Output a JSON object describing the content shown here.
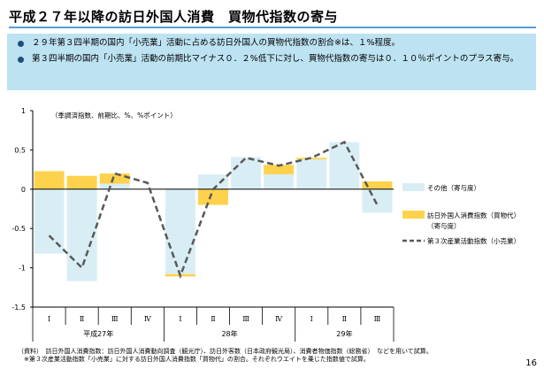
{
  "title": "平成２７年以降の訪日外国人消費　買物代指数の寄与",
  "bullets": [
    "２９年第３四半期の国内「小売業」活動に占める訪日外国人の買物代指数の割合※は、１%程度。",
    "第３四半期の国内「小売業」活動の前期比マイナス０．２%低下に対し、買物代指数の寄与は０．１０％ポイントのプラス寄与。"
  ],
  "footnotes": [
    "（資料）　訪日外国人消費指数：訪日外国人消費動向調査（観光庁）、訪日外客数（日本政府観光局）、消費者物価指数（総務省）　などを用いて試算。",
    "　※第３次産業活動指数「小売業」に対する訪日外国人消費指数「買物代」の割合。それぞれウエイトを乗じた指数値で試算。"
  ],
  "page_number": "16",
  "colors": {
    "other": "#d9eef4",
    "inbound": "#ffd24d",
    "line": "#595959",
    "accent": "#5b9bd5"
  },
  "chart_data": {
    "type": "bar",
    "unit_note": "（季調済指数、前期比、%、%ポイント）",
    "quarters": [
      "Ⅰ",
      "Ⅱ",
      "Ⅲ",
      "Ⅳ",
      "Ⅰ",
      "Ⅱ",
      "Ⅲ",
      "Ⅳ",
      "Ⅰ",
      "Ⅱ",
      "Ⅲ"
    ],
    "years": [
      {
        "label": "平成27年",
        "start": 0,
        "count": 4
      },
      {
        "label": "28年",
        "start": 4,
        "count": 4
      },
      {
        "label": "29年",
        "start": 8,
        "count": 3
      }
    ],
    "yticks": [
      "1",
      "0.5",
      "0",
      "-0.5",
      "-1",
      "-1.5"
    ],
    "ylim": [
      -1.5,
      1
    ],
    "series": [
      {
        "name": "その他（寄与度）",
        "kind": "stacked-bar",
        "values": [
          -0.82,
          -1.17,
          0.07,
          0.0,
          -1.08,
          0.19,
          0.41,
          0.19,
          0.38,
          0.6,
          -0.3
        ]
      },
      {
        "name": "訪日外国人消費指数（買物代）\n（寄与度）",
        "kind": "stacked-bar",
        "values": [
          0.23,
          0.17,
          0.13,
          0.0,
          -0.03,
          -0.2,
          0.0,
          0.12,
          0.02,
          0.0,
          0.1
        ]
      },
      {
        "name": "第３次産業活動指数（小売業）",
        "kind": "line",
        "values": [
          -0.59,
          -1.0,
          0.2,
          0.08,
          -1.1,
          0.0,
          0.4,
          0.3,
          0.4,
          0.6,
          -0.2
        ]
      }
    ]
  }
}
